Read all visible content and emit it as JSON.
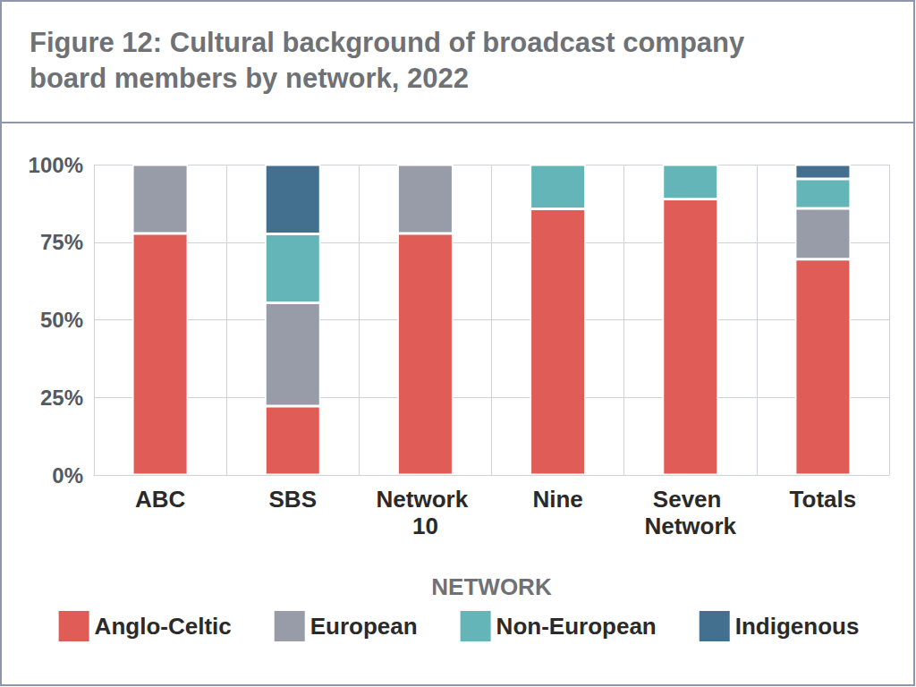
{
  "chart_data": {
    "type": "bar",
    "title": "Figure 12: Cultural background of broadcast company board members by network, 2022",
    "x_label": "NETWORK",
    "categories": [
      "ABC",
      "SBS",
      "Network 10",
      "Nine",
      "Seven Network",
      "Totals"
    ],
    "series": [
      {
        "name": "Anglo-Celtic",
        "color": "#e05c57",
        "values": [
          77.8,
          22.2,
          77.8,
          85.7,
          88.9,
          69.5
        ]
      },
      {
        "name": "European",
        "color": "#979ca8",
        "values": [
          22.2,
          33.3,
          22.2,
          0,
          0,
          16.4
        ]
      },
      {
        "name": "Non-European",
        "color": "#64b5b7",
        "values": [
          0,
          22.2,
          0,
          14.3,
          11.1,
          9.5
        ]
      },
      {
        "name": "Indigenous",
        "color": "#44708f",
        "values": [
          0,
          22.3,
          0,
          0,
          0,
          4.6
        ]
      }
    ],
    "ylim": [
      0,
      100
    ],
    "yticks": [
      {
        "value": 0,
        "label": "0%"
      },
      {
        "value": 25,
        "label": "25%"
      },
      {
        "value": 50,
        "label": "50%"
      },
      {
        "value": 75,
        "label": "75%"
      },
      {
        "value": 100,
        "label": "100%"
      }
    ],
    "stacked": true,
    "grid": true,
    "legend": "bottom"
  }
}
